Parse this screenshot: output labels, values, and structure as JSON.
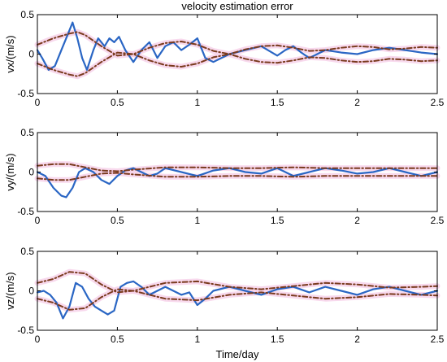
{
  "figure": {
    "title": "velocity estimation error",
    "xlabel": "Time/day"
  },
  "colors": {
    "estimate": "#2a66c4",
    "bound": "#7a3b1e",
    "bound_halo": "#f6cfe8",
    "axis": "#000000"
  },
  "chart_data": [
    {
      "type": "line",
      "ylabel": "vx/(m/s)",
      "xlim": [
        0,
        2.5
      ],
      "ylim": [
        -0.5,
        0.5
      ],
      "xticks": [
        0,
        0.5,
        1,
        1.5,
        2,
        2.5
      ],
      "xtick_labels": [
        "0",
        "0.5",
        "1",
        "1.5",
        "2",
        "2.5"
      ],
      "yticks": [
        0.5,
        0,
        -0.5
      ],
      "ytick_labels": [
        "0.5",
        "0",
        "-0.5"
      ],
      "series": [
        {
          "role": "error",
          "style": "solid",
          "color": "#2a66c4",
          "x": [
            0,
            0.03,
            0.07,
            0.11,
            0.15,
            0.19,
            0.22,
            0.25,
            0.28,
            0.31,
            0.35,
            0.38,
            0.42,
            0.45,
            0.48,
            0.51,
            0.55,
            0.6,
            0.65,
            0.7,
            0.75,
            0.8,
            0.85,
            0.9,
            0.95,
            1.0,
            1.05,
            1.1,
            1.2,
            1.3,
            1.4,
            1.5,
            1.55,
            1.6,
            1.65,
            1.7,
            1.8,
            1.9,
            2.0,
            2.1,
            2.2,
            2.3,
            2.4,
            2.5
          ],
          "y": [
            0.05,
            -0.05,
            -0.2,
            -0.15,
            0.05,
            0.25,
            0.4,
            0.2,
            -0.05,
            -0.2,
            0.05,
            0.2,
            0.1,
            0.2,
            0.15,
            0.22,
            0.05,
            -0.1,
            0.05,
            0.15,
            -0.05,
            0.1,
            0.15,
            0.05,
            0.12,
            0.2,
            -0.05,
            -0.1,
            0.0,
            0.05,
            0.1,
            -0.02,
            0.05,
            0.1,
            0.02,
            -0.05,
            0.05,
            0.02,
            0.0,
            0.05,
            0.08,
            0.05,
            0.02,
            0.0
          ]
        },
        {
          "role": "upper bound",
          "style": "dashdot",
          "color": "#7a3b1e",
          "x": [
            0,
            0.1,
            0.2,
            0.25,
            0.3,
            0.4,
            0.5,
            0.6,
            0.7,
            0.8,
            0.9,
            1.0,
            1.1,
            1.2,
            1.3,
            1.4,
            1.5,
            1.6,
            1.7,
            1.8,
            1.9,
            2.0,
            2.1,
            2.2,
            2.3,
            2.4,
            2.5
          ],
          "y": [
            0.12,
            0.2,
            0.26,
            0.28,
            0.24,
            0.1,
            -0.02,
            0.0,
            0.08,
            0.14,
            0.16,
            0.12,
            0.04,
            0.0,
            0.06,
            0.1,
            0.11,
            0.08,
            0.04,
            0.05,
            0.08,
            0.1,
            0.09,
            0.06,
            0.07,
            0.09,
            0.08
          ]
        },
        {
          "role": "lower bound",
          "style": "dashdot",
          "color": "#7a3b1e",
          "x": [
            0,
            0.1,
            0.2,
            0.25,
            0.3,
            0.4,
            0.5,
            0.6,
            0.7,
            0.8,
            0.9,
            1.0,
            1.1,
            1.2,
            1.3,
            1.4,
            1.5,
            1.6,
            1.7,
            1.8,
            1.9,
            2.0,
            2.1,
            2.2,
            2.3,
            2.4,
            2.5
          ],
          "y": [
            -0.12,
            -0.2,
            -0.26,
            -0.28,
            -0.24,
            -0.1,
            0.02,
            0.0,
            -0.08,
            -0.14,
            -0.16,
            -0.12,
            -0.04,
            0.0,
            -0.06,
            -0.1,
            -0.11,
            -0.08,
            -0.04,
            -0.05,
            -0.08,
            -0.1,
            -0.09,
            -0.06,
            -0.07,
            -0.09,
            -0.08
          ]
        }
      ]
    },
    {
      "type": "line",
      "ylabel": "vy/(m/s)",
      "xlim": [
        0,
        2.5
      ],
      "ylim": [
        -0.5,
        0.5
      ],
      "xticks": [
        0,
        0.5,
        1,
        1.5,
        2,
        2.5
      ],
      "xtick_labels": [
        "0",
        "0.5",
        "1",
        "1.5",
        "2",
        "2.5"
      ],
      "yticks": [
        0.5,
        0,
        -0.5
      ],
      "ytick_labels": [
        "0.5",
        "0",
        "-0.5"
      ],
      "series": [
        {
          "role": "error",
          "style": "solid",
          "color": "#2a66c4",
          "x": [
            0,
            0.05,
            0.1,
            0.15,
            0.18,
            0.22,
            0.26,
            0.3,
            0.35,
            0.4,
            0.45,
            0.5,
            0.55,
            0.6,
            0.65,
            0.7,
            0.75,
            0.8,
            0.9,
            1.0,
            1.1,
            1.2,
            1.3,
            1.4,
            1.5,
            1.6,
            1.7,
            1.8,
            1.9,
            2.0,
            2.1,
            2.2,
            2.3,
            2.4,
            2.5
          ],
          "y": [
            0.0,
            -0.05,
            -0.2,
            -0.3,
            -0.32,
            -0.2,
            0.0,
            0.05,
            0.0,
            -0.1,
            -0.15,
            -0.05,
            0.02,
            0.05,
            0.0,
            -0.05,
            -0.02,
            0.05,
            0.0,
            -0.05,
            0.02,
            0.05,
            0.0,
            -0.02,
            0.05,
            -0.05,
            0.0,
            0.05,
            0.02,
            -0.02,
            0.0,
            0.05,
            0.0,
            -0.05,
            0.0
          ]
        },
        {
          "role": "upper bound",
          "style": "dashdot",
          "color": "#7a3b1e",
          "x": [
            0,
            0.1,
            0.2,
            0.3,
            0.4,
            0.5,
            0.6,
            0.8,
            1.0,
            1.2,
            1.4,
            1.6,
            1.8,
            2.0,
            2.2,
            2.4,
            2.5
          ],
          "y": [
            0.08,
            0.1,
            0.1,
            0.06,
            0.02,
            0.01,
            0.03,
            0.06,
            0.06,
            0.05,
            0.05,
            0.06,
            0.05,
            0.05,
            0.05,
            0.05,
            0.05
          ]
        },
        {
          "role": "lower bound",
          "style": "dashdot",
          "color": "#7a3b1e",
          "x": [
            0,
            0.1,
            0.2,
            0.3,
            0.4,
            0.5,
            0.6,
            0.8,
            1.0,
            1.2,
            1.4,
            1.6,
            1.8,
            2.0,
            2.2,
            2.4,
            2.5
          ],
          "y": [
            -0.08,
            -0.1,
            -0.1,
            -0.06,
            -0.02,
            -0.01,
            -0.03,
            -0.06,
            -0.06,
            -0.05,
            -0.05,
            -0.06,
            -0.05,
            -0.05,
            -0.05,
            -0.05,
            -0.05
          ]
        }
      ]
    },
    {
      "type": "line",
      "ylabel": "vz/(m/s)",
      "xlim": [
        0,
        2.5
      ],
      "ylim": [
        -0.5,
        0.5
      ],
      "xticks": [
        0,
        0.5,
        1,
        1.5,
        2,
        2.5
      ],
      "xtick_labels": [
        "0",
        "0.5",
        "1",
        "1.5",
        "2",
        "2.5"
      ],
      "yticks": [
        0.5,
        0,
        -0.5
      ],
      "ytick_labels": [
        "0.5",
        "0",
        "-0.5"
      ],
      "series": [
        {
          "role": "error",
          "style": "solid",
          "color": "#2a66c4",
          "x": [
            0,
            0.04,
            0.08,
            0.12,
            0.16,
            0.2,
            0.24,
            0.28,
            0.32,
            0.36,
            0.4,
            0.44,
            0.48,
            0.52,
            0.56,
            0.6,
            0.65,
            0.7,
            0.75,
            0.8,
            0.85,
            0.9,
            0.95,
            1.0,
            1.05,
            1.1,
            1.2,
            1.3,
            1.4,
            1.5,
            1.6,
            1.7,
            1.8,
            1.9,
            2.0,
            2.1,
            2.2,
            2.3,
            2.4,
            2.5
          ],
          "y": [
            -0.02,
            0.0,
            -0.05,
            -0.15,
            -0.35,
            -0.2,
            0.1,
            0.05,
            -0.1,
            -0.2,
            -0.25,
            -0.3,
            -0.25,
            0.05,
            0.1,
            0.12,
            0.05,
            -0.05,
            0.0,
            0.05,
            0.0,
            -0.05,
            -0.02,
            -0.18,
            -0.1,
            0.0,
            0.05,
            0.0,
            -0.05,
            0.02,
            0.05,
            -0.02,
            0.05,
            0.0,
            -0.05,
            0.02,
            0.05,
            0.0,
            -0.05,
            0.0
          ]
        },
        {
          "role": "upper bound",
          "style": "dashdot",
          "color": "#7a3b1e",
          "x": [
            0,
            0.1,
            0.2,
            0.3,
            0.4,
            0.5,
            0.6,
            0.7,
            0.8,
            1.0,
            1.2,
            1.4,
            1.6,
            1.8,
            2.0,
            2.2,
            2.4,
            2.5
          ],
          "y": [
            0.1,
            0.15,
            0.24,
            0.22,
            0.08,
            -0.02,
            0.0,
            0.05,
            0.1,
            0.12,
            0.05,
            0.02,
            0.06,
            0.1,
            0.08,
            0.04,
            0.05,
            0.06
          ]
        },
        {
          "role": "lower bound",
          "style": "dashdot",
          "color": "#7a3b1e",
          "x": [
            0,
            0.1,
            0.2,
            0.3,
            0.4,
            0.5,
            0.6,
            0.7,
            0.8,
            1.0,
            1.2,
            1.4,
            1.6,
            1.8,
            2.0,
            2.2,
            2.4,
            2.5
          ],
          "y": [
            -0.1,
            -0.15,
            -0.24,
            -0.22,
            -0.08,
            0.02,
            0.0,
            -0.05,
            -0.1,
            -0.12,
            -0.05,
            -0.02,
            -0.06,
            -0.1,
            -0.08,
            -0.04,
            -0.05,
            -0.06
          ]
        }
      ]
    }
  ]
}
